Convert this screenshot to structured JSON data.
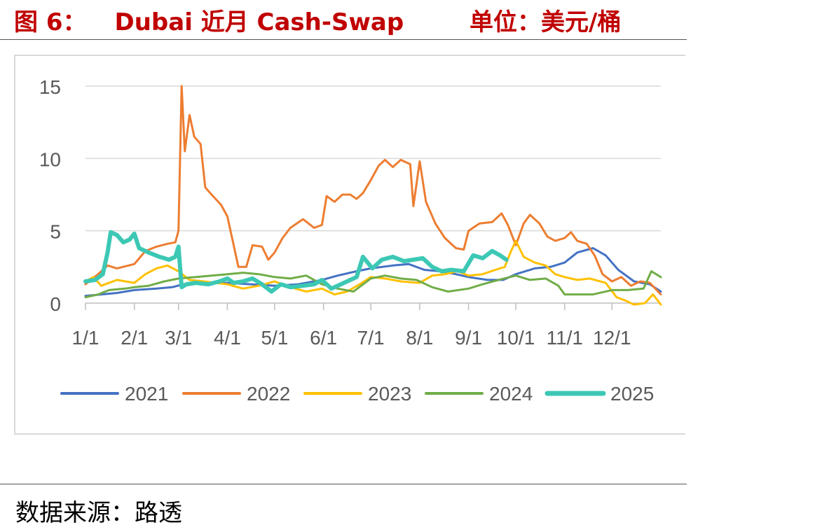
{
  "header": {
    "figure_label": "图 6：",
    "figure_name": "Dubai 近月 Cash-Swap",
    "unit": "单位：美元/桶"
  },
  "footer": {
    "source": "数据来源：路透"
  },
  "chart_data": {
    "type": "line",
    "title": "",
    "xlabel": "",
    "ylabel": "",
    "ylim": [
      0,
      15
    ],
    "yticks": [
      0,
      5,
      10,
      15
    ],
    "x_tick_labels": [
      "1/1",
      "2/1",
      "3/1",
      "4/1",
      "5/1",
      "6/1",
      "7/1",
      "8/1",
      "9/1",
      "10/1",
      "11/1",
      "12/1"
    ],
    "x_tick_days": [
      0,
      31,
      59,
      90,
      120,
      151,
      181,
      212,
      243,
      273,
      304,
      334
    ],
    "x_domain": [
      0,
      365
    ],
    "grid": "horizontal",
    "legend_position": "bottom",
    "series": [
      {
        "name": "2021",
        "color": "#4472c4",
        "width": 3,
        "points": [
          [
            0,
            0.5
          ],
          [
            10,
            0.6
          ],
          [
            20,
            0.7
          ],
          [
            31,
            0.9
          ],
          [
            45,
            1.0
          ],
          [
            55,
            1.1
          ],
          [
            62,
            1.3
          ],
          [
            75,
            1.4
          ],
          [
            90,
            1.4
          ],
          [
            105,
            1.3
          ],
          [
            120,
            1.2
          ],
          [
            135,
            1.3
          ],
          [
            150,
            1.6
          ],
          [
            160,
            1.9
          ],
          [
            172,
            2.2
          ],
          [
            181,
            2.4
          ],
          [
            195,
            2.6
          ],
          [
            205,
            2.7
          ],
          [
            215,
            2.3
          ],
          [
            225,
            2.2
          ],
          [
            235,
            2.0
          ],
          [
            243,
            1.8
          ],
          [
            255,
            1.6
          ],
          [
            265,
            1.6
          ],
          [
            273,
            2.0
          ],
          [
            285,
            2.4
          ],
          [
            295,
            2.5
          ],
          [
            304,
            2.8
          ],
          [
            312,
            3.5
          ],
          [
            322,
            3.8
          ],
          [
            330,
            3.3
          ],
          [
            338,
            2.3
          ],
          [
            348,
            1.5
          ],
          [
            358,
            1.3
          ],
          [
            365,
            0.8
          ]
        ]
      },
      {
        "name": "2022",
        "color": "#ed7d31",
        "width": 3,
        "points": [
          [
            0,
            1.3
          ],
          [
            8,
            2.0
          ],
          [
            14,
            2.6
          ],
          [
            20,
            2.4
          ],
          [
            31,
            2.7
          ],
          [
            38,
            3.6
          ],
          [
            45,
            3.9
          ],
          [
            52,
            4.1
          ],
          [
            57,
            4.2
          ],
          [
            59,
            5.0
          ],
          [
            61,
            15.0
          ],
          [
            63,
            10.5
          ],
          [
            66,
            13.0
          ],
          [
            69,
            11.5
          ],
          [
            73,
            11.0
          ],
          [
            76,
            8.0
          ],
          [
            80,
            7.5
          ],
          [
            86,
            6.8
          ],
          [
            90,
            6.0
          ],
          [
            93,
            4.5
          ],
          [
            97,
            2.5
          ],
          [
            102,
            2.5
          ],
          [
            106,
            4.0
          ],
          [
            112,
            3.9
          ],
          [
            116,
            3.0
          ],
          [
            120,
            3.5
          ],
          [
            125,
            4.5
          ],
          [
            130,
            5.2
          ],
          [
            138,
            5.8
          ],
          [
            145,
            5.2
          ],
          [
            150,
            5.4
          ],
          [
            153,
            7.4
          ],
          [
            158,
            7.0
          ],
          [
            163,
            7.5
          ],
          [
            168,
            7.5
          ],
          [
            172,
            7.2
          ],
          [
            176,
            7.6
          ],
          [
            181,
            8.5
          ],
          [
            186,
            9.5
          ],
          [
            190,
            9.9
          ],
          [
            195,
            9.4
          ],
          [
            200,
            9.9
          ],
          [
            206,
            9.6
          ],
          [
            208,
            6.7
          ],
          [
            212,
            9.8
          ],
          [
            216,
            7.0
          ],
          [
            222,
            5.5
          ],
          [
            228,
            4.5
          ],
          [
            235,
            3.8
          ],
          [
            240,
            3.7
          ],
          [
            243,
            5.0
          ],
          [
            250,
            5.5
          ],
          [
            258,
            5.6
          ],
          [
            264,
            6.2
          ],
          [
            268,
            5.4
          ],
          [
            273,
            4.0
          ],
          [
            278,
            5.5
          ],
          [
            282,
            6.1
          ],
          [
            288,
            5.5
          ],
          [
            293,
            4.6
          ],
          [
            298,
            4.3
          ],
          [
            304,
            4.5
          ],
          [
            308,
            4.9
          ],
          [
            312,
            4.3
          ],
          [
            318,
            4.1
          ],
          [
            323,
            3.3
          ],
          [
            328,
            2.0
          ],
          [
            334,
            1.5
          ],
          [
            340,
            1.8
          ],
          [
            346,
            1.2
          ],
          [
            352,
            1.5
          ],
          [
            358,
            1.4
          ],
          [
            365,
            0.6
          ]
        ]
      },
      {
        "name": "2023",
        "color": "#ffc000",
        "width": 3,
        "points": [
          [
            0,
            1.5
          ],
          [
            5,
            1.8
          ],
          [
            10,
            1.2
          ],
          [
            20,
            1.6
          ],
          [
            31,
            1.4
          ],
          [
            38,
            2.0
          ],
          [
            45,
            2.4
          ],
          [
            52,
            2.6
          ],
          [
            59,
            2.2
          ],
          [
            66,
            1.6
          ],
          [
            75,
            1.5
          ],
          [
            90,
            1.3
          ],
          [
            100,
            1.0
          ],
          [
            110,
            1.2
          ],
          [
            120,
            1.5
          ],
          [
            130,
            1.1
          ],
          [
            140,
            0.8
          ],
          [
            150,
            1.0
          ],
          [
            158,
            0.6
          ],
          [
            166,
            0.8
          ],
          [
            174,
            1.3
          ],
          [
            181,
            1.8
          ],
          [
            190,
            1.7
          ],
          [
            200,
            1.5
          ],
          [
            212,
            1.4
          ],
          [
            220,
            1.9
          ],
          [
            228,
            2.0
          ],
          [
            236,
            2.2
          ],
          [
            243,
            1.9
          ],
          [
            252,
            2.0
          ],
          [
            260,
            2.3
          ],
          [
            266,
            2.5
          ],
          [
            270,
            3.6
          ],
          [
            273,
            4.3
          ],
          [
            278,
            3.2
          ],
          [
            285,
            2.8
          ],
          [
            292,
            2.6
          ],
          [
            298,
            2.0
          ],
          [
            304,
            1.8
          ],
          [
            312,
            1.6
          ],
          [
            320,
            1.7
          ],
          [
            330,
            1.4
          ],
          [
            337,
            0.4
          ],
          [
            342,
            0.2
          ],
          [
            348,
            -0.1
          ],
          [
            355,
            0.0
          ],
          [
            360,
            0.6
          ],
          [
            365,
            -0.1
          ]
        ]
      },
      {
        "name": "2024",
        "color": "#70ad47",
        "width": 3,
        "points": [
          [
            0,
            0.4
          ],
          [
            8,
            0.6
          ],
          [
            15,
            0.9
          ],
          [
            25,
            1.0
          ],
          [
            31,
            1.1
          ],
          [
            40,
            1.2
          ],
          [
            50,
            1.5
          ],
          [
            59,
            1.7
          ],
          [
            70,
            1.8
          ],
          [
            80,
            1.9
          ],
          [
            90,
            2.0
          ],
          [
            100,
            2.1
          ],
          [
            110,
            2.0
          ],
          [
            120,
            1.8
          ],
          [
            130,
            1.7
          ],
          [
            140,
            1.9
          ],
          [
            150,
            1.3
          ],
          [
            160,
            1.0
          ],
          [
            170,
            0.8
          ],
          [
            181,
            1.7
          ],
          [
            190,
            1.9
          ],
          [
            200,
            1.7
          ],
          [
            210,
            1.6
          ],
          [
            220,
            1.1
          ],
          [
            230,
            0.8
          ],
          [
            243,
            1.0
          ],
          [
            252,
            1.3
          ],
          [
            262,
            1.6
          ],
          [
            273,
            1.9
          ],
          [
            282,
            1.6
          ],
          [
            292,
            1.7
          ],
          [
            300,
            1.2
          ],
          [
            304,
            0.6
          ],
          [
            312,
            0.6
          ],
          [
            322,
            0.6
          ],
          [
            334,
            0.9
          ],
          [
            344,
            0.9
          ],
          [
            354,
            1.0
          ],
          [
            359,
            2.2
          ],
          [
            365,
            1.8
          ]
        ]
      },
      {
        "name": "2025",
        "color": "#3cc8b4",
        "width": 6,
        "points": [
          [
            0,
            1.5
          ],
          [
            6,
            1.6
          ],
          [
            11,
            2.0
          ],
          [
            14,
            3.5
          ],
          [
            16,
            4.9
          ],
          [
            20,
            4.7
          ],
          [
            24,
            4.2
          ],
          [
            28,
            4.4
          ],
          [
            31,
            4.8
          ],
          [
            34,
            3.8
          ],
          [
            40,
            3.5
          ],
          [
            47,
            3.2
          ],
          [
            53,
            3.0
          ],
          [
            57,
            3.2
          ],
          [
            59,
            3.9
          ],
          [
            61,
            1.1
          ],
          [
            64,
            1.3
          ],
          [
            70,
            1.4
          ],
          [
            78,
            1.3
          ],
          [
            85,
            1.5
          ],
          [
            90,
            1.7
          ],
          [
            94,
            1.4
          ],
          [
            100,
            1.5
          ],
          [
            106,
            1.7
          ],
          [
            112,
            1.3
          ],
          [
            118,
            0.8
          ],
          [
            124,
            1.3
          ],
          [
            130,
            1.1
          ],
          [
            138,
            1.2
          ],
          [
            145,
            1.3
          ],
          [
            150,
            1.6
          ],
          [
            156,
            1.0
          ],
          [
            162,
            1.3
          ],
          [
            168,
            1.6
          ],
          [
            172,
            1.8
          ],
          [
            176,
            3.2
          ],
          [
            182,
            2.4
          ],
          [
            188,
            3.0
          ],
          [
            195,
            3.2
          ],
          [
            202,
            2.9
          ],
          [
            208,
            3.0
          ],
          [
            214,
            3.1
          ],
          [
            220,
            2.5
          ],
          [
            226,
            2.2
          ],
          [
            232,
            2.3
          ],
          [
            240,
            2.2
          ],
          [
            246,
            3.3
          ],
          [
            252,
            3.1
          ],
          [
            258,
            3.6
          ],
          [
            263,
            3.3
          ],
          [
            267,
            3.0
          ]
        ]
      }
    ]
  }
}
